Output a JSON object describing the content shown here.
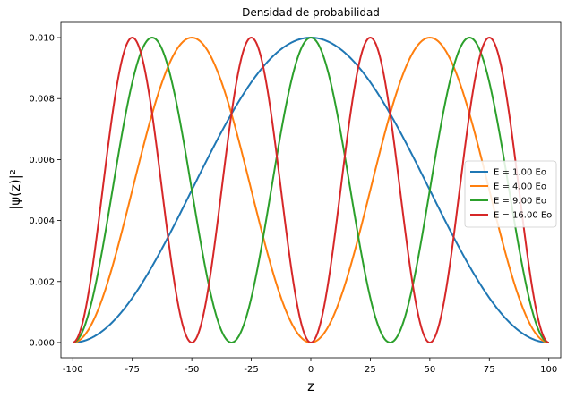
{
  "chart_data": {
    "type": "line",
    "title": "Densidad de probabilidad",
    "xlabel": "z",
    "ylabel": "|ψ(z)|²",
    "xlim": [
      -105,
      105
    ],
    "ylim": [
      -0.0005,
      0.0105
    ],
    "xticks": [
      -100,
      -75,
      -50,
      -25,
      0,
      25,
      50,
      75,
      100
    ],
    "yticks": [
      0.0,
      0.002,
      0.004,
      0.006,
      0.008,
      0.01
    ],
    "ytick_labels": [
      "0.000",
      "0.002",
      "0.004",
      "0.006",
      "0.008",
      "0.010"
    ],
    "grid": false,
    "legend_position": "center-right",
    "x_domain": [
      -100,
      100
    ],
    "series": [
      {
        "name": "E = 1.00 Eo",
        "n": 1,
        "color": "#1f77b4",
        "peaks": [
          {
            "z": 0,
            "y": 0.01
          }
        ],
        "zeros": [
          -100,
          100
        ]
      },
      {
        "name": "E = 4.00 Eo",
        "n": 2,
        "color": "#ff7f0e",
        "peaks": [
          {
            "z": -50,
            "y": 0.01
          },
          {
            "z": 50,
            "y": 0.01
          }
        ],
        "zeros": [
          -100,
          0,
          100
        ]
      },
      {
        "name": "E = 9.00 Eo",
        "n": 3,
        "color": "#2ca02c",
        "peaks": [
          {
            "z": -66.7,
            "y": 0.01
          },
          {
            "z": 0,
            "y": 0.01
          },
          {
            "z": 66.7,
            "y": 0.01
          }
        ],
        "zeros": [
          -100,
          -33.3,
          33.3,
          100
        ]
      },
      {
        "name": "E = 16.00 Eo",
        "n": 4,
        "color": "#d62728",
        "peaks": [
          {
            "z": -75,
            "y": 0.01
          },
          {
            "z": -25,
            "y": 0.01
          },
          {
            "z": 25,
            "y": 0.01
          },
          {
            "z": 75,
            "y": 0.01
          }
        ],
        "zeros": [
          -100,
          -50,
          0,
          50,
          100
        ]
      }
    ]
  }
}
